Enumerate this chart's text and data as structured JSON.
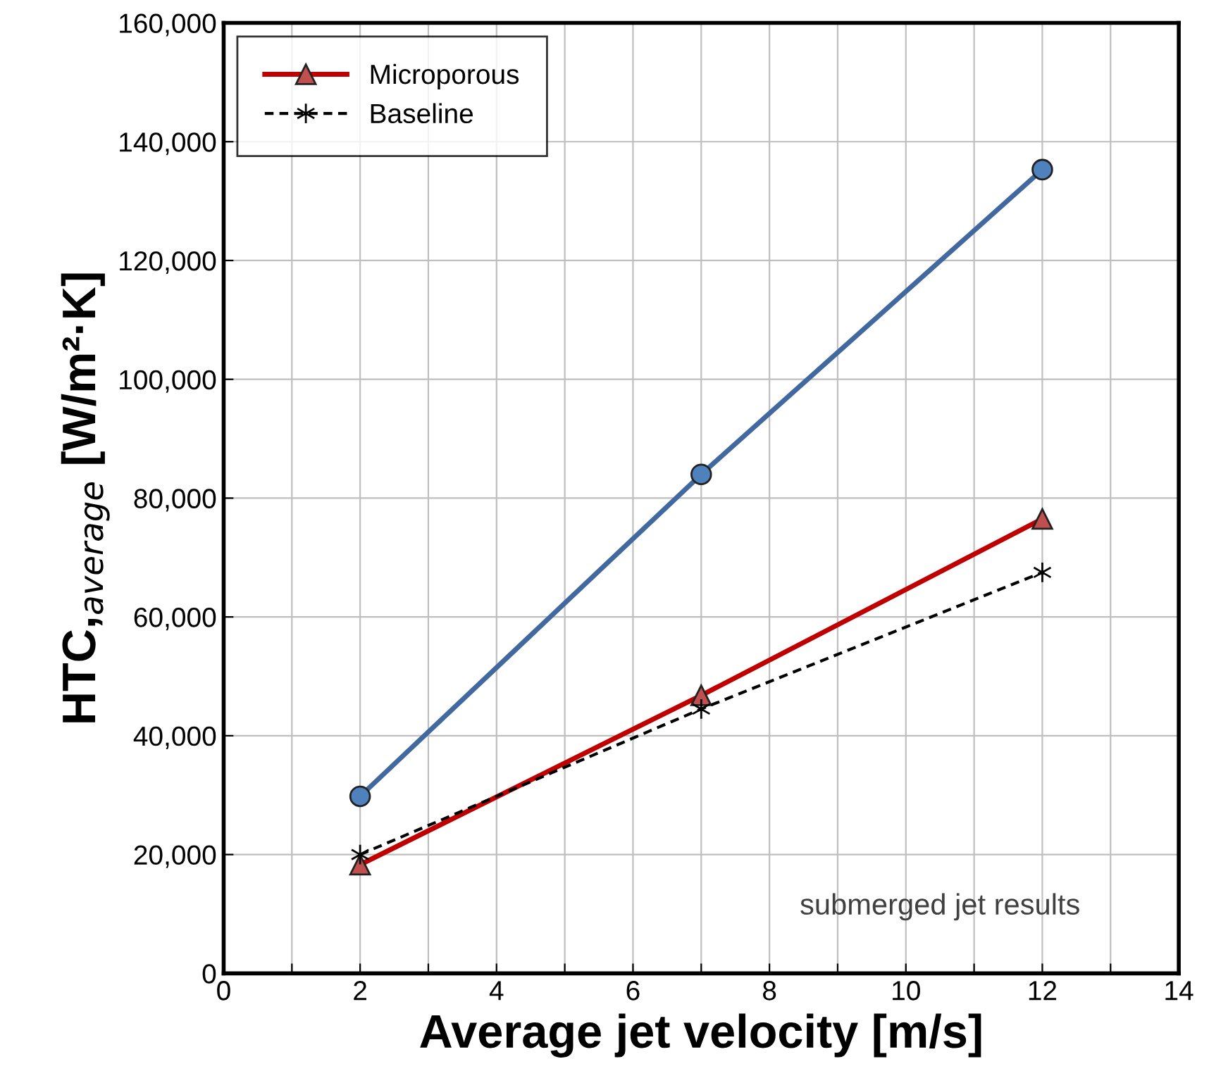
{
  "chart_data": {
    "type": "line",
    "xlabel": "Average jet velocity [m/s]",
    "ylabel": "HTC,$_{average}$ [W/m²·K]",
    "x": [
      2,
      7,
      12
    ],
    "series": [
      {
        "color": "#41699f",
        "marker": "circle",
        "line_style": "solid",
        "values": [
          29800,
          84000,
          135300
        ]
      },
      {
        "name": "Microporous",
        "color": "#c00000",
        "marker": "triangle",
        "line_style": "solid",
        "values": [
          18300,
          46800,
          76500
        ]
      },
      {
        "name": "Baseline",
        "color": "#000000",
        "marker": "cross",
        "line_style": "dashed",
        "values": [
          20000,
          44500,
          67500
        ]
      }
    ],
    "xlim": [
      0,
      14
    ],
    "xticks": [
      0,
      {
        "value": 1,
        "label": null
      },
      2,
      {
        "value": 3,
        "label": null
      },
      4,
      {
        "value": 5,
        "label": null
      },
      6,
      {
        "value": 7,
        "label": null
      },
      8,
      {
        "value": 9,
        "label": null
      },
      10,
      {
        "value": 11,
        "label": null
      },
      12,
      {
        "value": 13,
        "label": null
      },
      14
    ],
    "ylim": [
      0,
      160000
    ],
    "yticks": [
      {
        "value": 0,
        "label": "0"
      },
      {
        "value": 20000,
        "label": "20,000"
      },
      {
        "value": 40000,
        "label": "40,000"
      },
      {
        "value": 60000,
        "label": "60,000"
      },
      {
        "value": 80000,
        "label": "80,000"
      },
      {
        "value": 100000,
        "label": "100,000"
      },
      {
        "value": 120000,
        "label": "120,000"
      },
      {
        "value": 140000,
        "label": "140,000"
      },
      {
        "value": 160000,
        "label": "160,000"
      }
    ],
    "grid": true,
    "legend": "top left",
    "annotations": [
      "submerged jet results"
    ]
  }
}
